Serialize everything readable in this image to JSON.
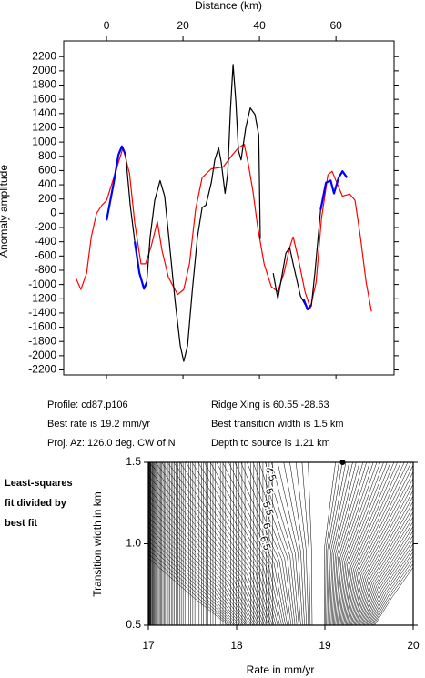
{
  "chart_data": [
    {
      "type": "line",
      "xlabel": "Distance (km)",
      "ylabel": "Anomaly amplitude",
      "xlim": [
        -11.2,
        75.2
      ],
      "xticks": [
        0,
        20,
        40,
        60
      ],
      "ylim": [
        -2270,
        2420
      ],
      "yticks": [
        -2200,
        -2000,
        -1800,
        -1600,
        -1400,
        -1200,
        -1000,
        -800,
        -600,
        -400,
        -200,
        0,
        200,
        400,
        600,
        800,
        1000,
        1200,
        1400,
        1600,
        1800,
        2000,
        2200
      ],
      "series": [
        {
          "color": "#ff0000",
          "x": [
            -8.1,
            -6.7,
            -5.2,
            -4,
            -2.6,
            -1.2,
            0,
            1.9,
            4.3,
            6,
            7.4,
            9,
            10.2,
            11.7,
            13.3,
            14.5,
            16.2,
            18.6,
            20.2,
            21.7,
            23.3,
            25,
            27.4,
            30.5,
            32.9,
            34.5,
            36,
            37.1,
            38.3,
            39.5,
            41.2,
            43.1,
            44.8,
            46.4,
            47.9,
            48.8,
            50.2,
            51.9,
            53.3,
            54.8,
            56.2,
            57.9,
            59,
            60.2,
            61.7,
            63.6,
            65,
            66.4,
            67.9,
            69.3
          ],
          "values": [
            -900,
            -1070,
            -840,
            -330,
            0,
            115,
            180,
            500,
            920,
            560,
            -140,
            -710,
            -710,
            -460,
            -115,
            -520,
            -900,
            -1140,
            -1070,
            -710,
            50,
            500,
            625,
            650,
            820,
            920,
            970,
            690,
            305,
            -180,
            -710,
            -1030,
            -1100,
            -840,
            -480,
            -330,
            -650,
            -1100,
            -1330,
            -970,
            -80,
            540,
            590,
            430,
            240,
            270,
            180,
            -330,
            -970,
            -1380
          ]
        },
        {
          "color": "#000000",
          "x": [
            0,
            1.9,
            3.1,
            4,
            5,
            6.2,
            7.4,
            8.6,
            9.8,
            10.5,
            11.4,
            12.6,
            14,
            15.2,
            16.4,
            17.9,
            19.3,
            20.2,
            21.2,
            22.4,
            23.8,
            25,
            26,
            27.4,
            28.3,
            29.3,
            30,
            31,
            31.7,
            32.4,
            33.1,
            33.8,
            34.5,
            35.2,
            36.4,
            37.6,
            38.8,
            39.8,
            40,
            40.2,
            42,
            43.6,
            44.8,
            46,
            46.9,
            47.9,
            48.8,
            50.7,
            52.6,
            53.6,
            54.5,
            56,
            57.4,
            58.6,
            59.5,
            60.7,
            61.7,
            62.9
          ],
          "values": [
            -100,
            430,
            820,
            940,
            820,
            115,
            -400,
            -840,
            -1060,
            -970,
            -330,
            180,
            460,
            240,
            -400,
            -1220,
            -1860,
            -2080,
            -1860,
            -1100,
            -330,
            80,
            115,
            430,
            750,
            920,
            715,
            280,
            560,
            1450,
            2090,
            1580,
            880,
            750,
            1200,
            1480,
            1390,
            1100,
            430,
            -360,
            null,
            -840,
            -1200,
            -840,
            -560,
            -480,
            -710,
            -1160,
            -1350,
            -1290,
            -840,
            50,
            430,
            460,
            280,
            500,
            590,
            500
          ]
        },
        {
          "color": "#0000ff",
          "x": [
            0,
            1.9,
            3.1,
            4,
            5,
            6,
            7.4,
            8.6,
            9.8,
            10.5,
            30,
            51.5,
            52.6,
            53.6,
            55,
            56,
            57.4,
            58.6,
            59.5,
            60.7,
            61.7,
            62.9
          ],
          "values": [
            -100,
            430,
            820,
            940,
            820,
            null,
            -400,
            -840,
            -1060,
            -970,
            null,
            -1200,
            -1350,
            -1290,
            null,
            50,
            430,
            460,
            280,
            500,
            590,
            500
          ]
        }
      ]
    },
    {
      "type": "contour",
      "title_lines": [
        "Least-squares",
        "fit divided by",
        "best fit"
      ],
      "xlabel": "Rate in mm/yr",
      "ylabel": "Transition width in km",
      "xlim": [
        17,
        20
      ],
      "xticks": [
        17,
        18,
        19,
        20
      ],
      "ylim": [
        0.5,
        1.5
      ],
      "yticks": [
        {
          "value": 0.5,
          "label": "0.5"
        },
        {
          "value": 1,
          "label": "1.0"
        },
        {
          "value": 1.5,
          "label": "1.5"
        }
      ],
      "levels": [
        {
          "value": 4.5,
          "label": "4.5"
        },
        {
          "value": 5,
          "label": "5"
        },
        {
          "value": 5.5,
          "label": "5.5"
        },
        {
          "value": 6,
          "label": "6"
        },
        {
          "value": 6.5,
          "label": "6.5"
        }
      ],
      "best_fit": {
        "x": 19.2,
        "y": 1.5
      }
    }
  ],
  "info": {
    "left": [
      "Profile: cd87.p106",
      "Best rate is 19.2 mm/yr",
      "Proj. Az: 126.0 deg. CW of N"
    ],
    "right": [
      "Ridge Xing is 60.55 -28.63",
      "Best transition width is 1.5 km",
      "Depth to source is   1.21 km"
    ]
  }
}
